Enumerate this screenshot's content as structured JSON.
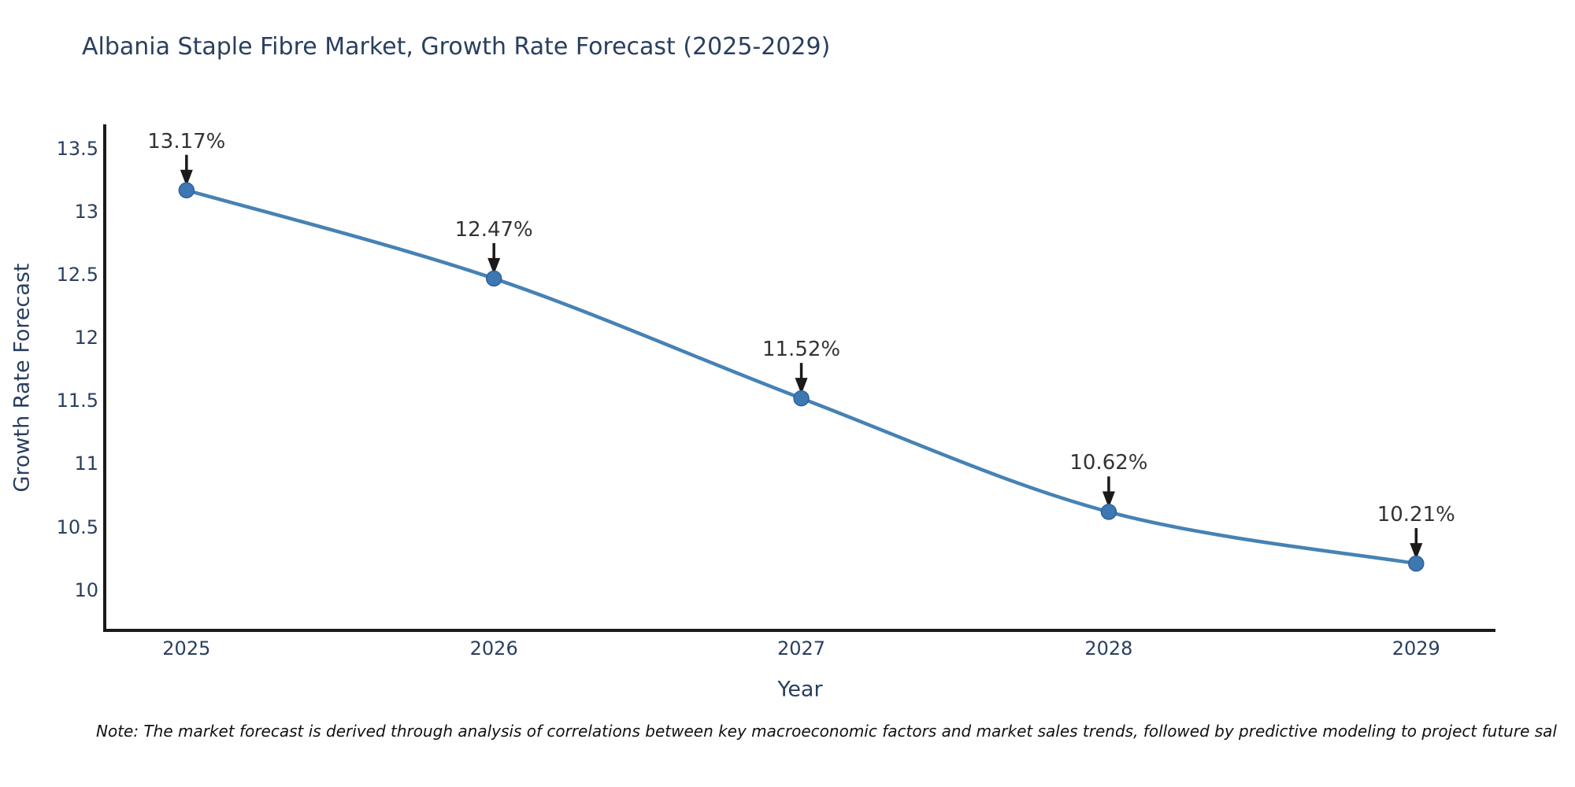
{
  "chart_data": {
    "type": "line",
    "title": "Albania Staple Fibre Market, Growth Rate Forecast (2025-2029)",
    "xlabel": "Year",
    "ylabel": "Growth Rate Forecast",
    "x": [
      2025,
      2026,
      2027,
      2028,
      2029
    ],
    "values": [
      13.17,
      12.47,
      11.52,
      10.62,
      10.21
    ],
    "point_labels": [
      "13.17%",
      "12.47%",
      "11.52%",
      "10.62%",
      "10.21%"
    ],
    "xtick_labels": [
      "2025",
      "2026",
      "2027",
      "2028",
      "2029"
    ],
    "ytick_values": [
      13.5,
      13,
      12.5,
      12,
      11.5,
      11,
      10.5,
      10
    ],
    "ytick_labels": [
      "13.5",
      "13",
      "12.5",
      "12",
      "11.5",
      "11",
      "10.5",
      "10"
    ],
    "xlim": [
      2024.734,
      2029.258
    ],
    "ylim": [
      9.68,
      13.68
    ],
    "grid": false,
    "legend": "none",
    "line_shape": "spline",
    "annotations_have_arrows": true,
    "colors": {
      "line": "#4682b4",
      "marker_fill": "#3d78b2",
      "marker_edge": "#2f6298",
      "axis": "#1a1a1a",
      "arrow": "#1a1a1a",
      "tick_text": "#2a3f5f",
      "annotation_text": "#333333",
      "note_text": "#111111",
      "background": "#ffffff"
    }
  },
  "note": {
    "text": "Note: The market forecast is derived through analysis of correlations between key macroeconomic factors and market sales trends, followed by predictive modeling to project future sal"
  }
}
